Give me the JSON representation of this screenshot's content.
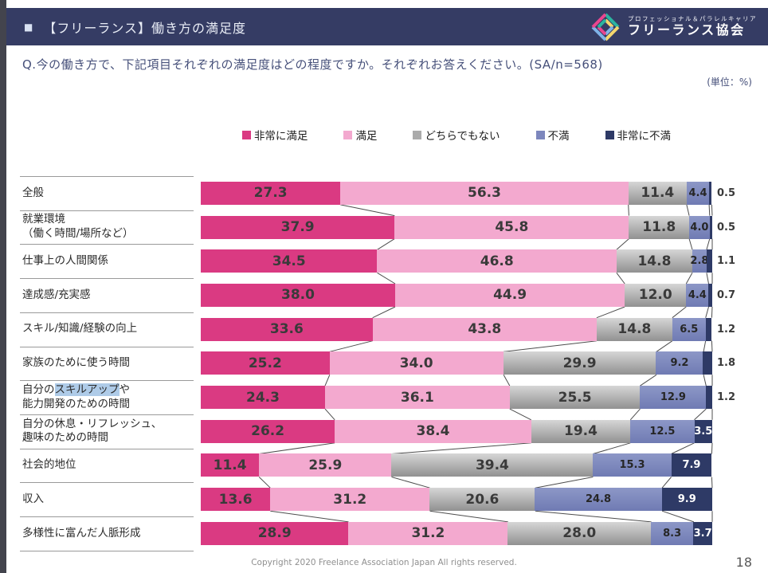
{
  "header": {
    "bullet": "■",
    "title": "【フリーランス】働き方の満足度",
    "logo": {
      "tagline": "プロフェッショナル＆パラレルキャリア",
      "name": "フリーランス協会"
    }
  },
  "question": {
    "text": "Q.今の働き方で、下記項目それぞれの満足度はどの程度ですか。それぞれお答えください。",
    "sample": "(SA/n=568)",
    "unit_note": "(単位：%)"
  },
  "chart_data": {
    "type": "bar",
    "orientation": "horizontal-stacked",
    "title": "【フリーランス】働き方の満足度",
    "unit": "%",
    "n": 568,
    "xlim": [
      0,
      100
    ],
    "value_labels": true,
    "legend_position": "top-center",
    "series": [
      {
        "name": "非常に満足",
        "color": "#da3a82"
      },
      {
        "name": "満足",
        "color": "#f3a9cf"
      },
      {
        "name": "どちらでもない",
        "color": "#ababab"
      },
      {
        "name": "不満",
        "color": "#7d87bd"
      },
      {
        "name": "非常に不満",
        "color": "#2e3a66"
      }
    ],
    "categories": [
      {
        "label": "全般",
        "values": [
          27.3,
          56.3,
          11.4,
          4.4,
          0.5
        ]
      },
      {
        "label": "就業環境\n（働く時間/場所など）",
        "values": [
          37.9,
          45.8,
          11.8,
          4.0,
          0.5
        ]
      },
      {
        "label": "仕事上の人間関係",
        "values": [
          34.5,
          46.8,
          14.8,
          2.8,
          1.1
        ]
      },
      {
        "label": "達成感/充実感",
        "values": [
          38.0,
          44.9,
          12.0,
          4.4,
          0.7
        ]
      },
      {
        "label": "スキル/知識/経験の向上",
        "values": [
          33.6,
          43.8,
          14.8,
          6.5,
          1.2
        ]
      },
      {
        "label": "家族のために使う時間",
        "values": [
          25.2,
          34.0,
          29.9,
          9.2,
          1.8
        ]
      },
      {
        "label": "自分のスキルアップや\n能力開発のための時間",
        "highlight": "スキルアップ",
        "values": [
          24.3,
          36.1,
          25.5,
          12.9,
          1.2
        ]
      },
      {
        "label": "自分の休息・リフレッシュ、\n趣味のための時間",
        "values": [
          26.2,
          38.4,
          19.4,
          12.5,
          3.5
        ]
      },
      {
        "label": "社会的地位",
        "values": [
          11.4,
          25.9,
          39.4,
          15.3,
          7.9
        ]
      },
      {
        "label": "収入",
        "values": [
          13.6,
          31.2,
          20.6,
          24.8,
          9.9
        ]
      },
      {
        "label": "多様性に富んだ人脈形成",
        "values": [
          28.9,
          31.2,
          28.0,
          8.3,
          3.7
        ]
      }
    ]
  },
  "footer": {
    "copyright": "Copyright 2020 Freelance Association Japan  All rights reserved.",
    "page_number": "18"
  }
}
